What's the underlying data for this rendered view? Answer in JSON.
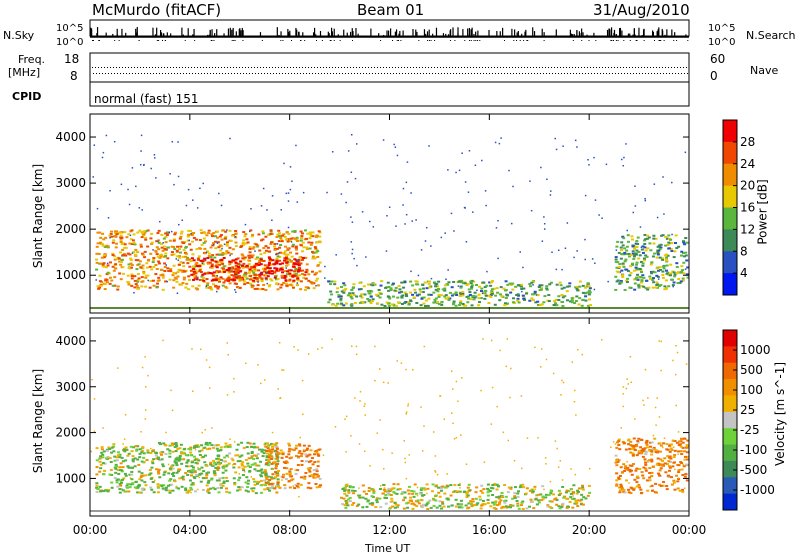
{
  "header": {
    "station": "McMurdo (fitACF)",
    "beam": "Beam 01",
    "date": "31/Aug/2010"
  },
  "top_panels": {
    "nsky_label": "N.Sky",
    "nsky_hi": "10^5",
    "nsky_lo": "10^0",
    "nsearch_label": "N.Search",
    "nsearch_hi": "10^5",
    "nsearch_lo": "10^0",
    "freq_label": "Freq.",
    "freq_unit": "[MHz]",
    "freq_ticks": [
      "18",
      "8"
    ],
    "nave_label": "Nave",
    "nave_ticks": [
      "60",
      "0"
    ],
    "cpid_label": "CPID",
    "cpid_value": "normal (fast) 151"
  },
  "chart_data": [
    {
      "type": "heatmap",
      "title": "",
      "xlabel": "Time UT",
      "ylabel": "Slant Range [km]",
      "xlim": [
        0,
        24
      ],
      "ylim": [
        180,
        4500
      ],
      "x_ticks": [
        "00:00",
        "04:00",
        "08:00",
        "12:00",
        "16:00",
        "20:00",
        "00:00"
      ],
      "y_ticks": [
        1000,
        2000,
        3000,
        4000
      ],
      "colorbar": {
        "label": "Power [dB]",
        "ticks": [
          "28",
          "24",
          "20",
          "16",
          "12",
          "8",
          "4"
        ],
        "range": [
          0,
          30
        ],
        "colors": [
          "#0018f0",
          "#2850c0",
          "#3c8a58",
          "#5ab63c",
          "#e8c800",
          "#f08c00",
          "#f04800",
          "#f00000"
        ]
      },
      "features": [
        {
          "name": "dense echo band",
          "t_start": 0.2,
          "t_end": 9.2,
          "range_km": [
            700,
            2000
          ],
          "power_db": 20
        },
        {
          "name": "strong core",
          "t_start": 4.0,
          "t_end": 8.6,
          "range_km": [
            900,
            1400
          ],
          "power_db": 28
        },
        {
          "name": "afternoon band",
          "t_start": 9.5,
          "t_end": 20.0,
          "range_km": [
            350,
            900
          ],
          "power_db": 12
        },
        {
          "name": "late evening patch",
          "t_start": 21.0,
          "t_end": 23.9,
          "range_km": [
            700,
            1900
          ],
          "power_db": 12
        }
      ]
    },
    {
      "type": "heatmap",
      "title": "",
      "xlabel": "Time UT",
      "ylabel": "Slant Range [km]",
      "xlim": [
        0,
        24
      ],
      "ylim": [
        180,
        4500
      ],
      "x_ticks": [
        "00:00",
        "04:00",
        "08:00",
        "12:00",
        "16:00",
        "20:00",
        "00:00"
      ],
      "y_ticks": [
        1000,
        2000,
        3000,
        4000
      ],
      "colorbar": {
        "label": "Velocity [m s^-1]",
        "ticks": [
          "1000",
          "500",
          "100",
          "25",
          "-25",
          "-100",
          "-500",
          "-1000"
        ],
        "colors": [
          "#0028d0",
          "#2a5ab8",
          "#3c8a58",
          "#52b040",
          "#6ed23a",
          "#c4c4c4",
          "#f0b000",
          "#f09000",
          "#f06800",
          "#f03000",
          "#e00000"
        ]
      },
      "features": [
        {
          "name": "positive velocity band",
          "t_start": 0.2,
          "t_end": 7.5,
          "range_km": [
            700,
            1800
          ],
          "velocity": 100
        },
        {
          "name": "negative velocity region",
          "t_start": 7.0,
          "t_end": 9.2,
          "range_km": [
            800,
            1800
          ],
          "velocity": -100
        },
        {
          "name": "afternoon band",
          "t_start": 10.0,
          "t_end": 20.0,
          "range_km": [
            350,
            900
          ],
          "velocity": 50
        },
        {
          "name": "evening patch",
          "t_start": 21.0,
          "t_end": 23.9,
          "range_km": [
            700,
            1900
          ],
          "velocity": -100
        }
      ]
    }
  ],
  "colors": {
    "axis": "#000000",
    "background": "#ffffff"
  }
}
